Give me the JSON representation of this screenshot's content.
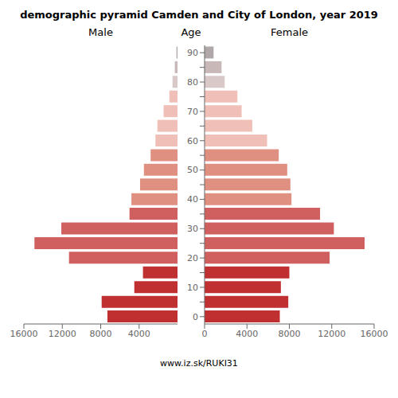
{
  "chart_data": {
    "type": "bar",
    "orientation": "horizontal",
    "title": "demographic pyramid Camden and City of London, year 2019",
    "ylabel": "Age",
    "annotations": [
      "www.iz.sk/RUKI31"
    ],
    "categories": [
      "0",
      null,
      "10",
      null,
      "20",
      null,
      "30",
      null,
      "40",
      null,
      "50",
      null,
      "60",
      null,
      "70",
      null,
      "80",
      null,
      "90"
    ],
    "series": [
      {
        "name": "Male",
        "values": [
          7300,
          7900,
          4500,
          3600,
          11300,
          14900,
          12100,
          5000,
          4800,
          3900,
          3500,
          2800,
          2300,
          2100,
          1450,
          850,
          520,
          280,
          110
        ],
        "colors": [
          "#c03030",
          "#c03030",
          "#c03030",
          "#c03030",
          "#d06060",
          "#d06060",
          "#d06060",
          "#d06060",
          "#e09080",
          "#e09080",
          "#e09080",
          "#e09080",
          "#f0c0b8",
          "#f0c0b8",
          "#f0c0b8",
          "#f0c0b8",
          "#d8c8c8",
          "#c8b8b8",
          "#b0a8a8"
        ]
      },
      {
        "name": "Female",
        "values": [
          7100,
          7900,
          7200,
          8000,
          11800,
          15100,
          12200,
          10900,
          8200,
          8100,
          7800,
          7000,
          5900,
          4500,
          3500,
          3100,
          1900,
          1600,
          850
        ],
        "colors": [
          "#c03030",
          "#c03030",
          "#c03030",
          "#c03030",
          "#d06060",
          "#d06060",
          "#d06060",
          "#d06060",
          "#e09080",
          "#e09080",
          "#e09080",
          "#e09080",
          "#f0c0b8",
          "#f0c0b8",
          "#f0c0b8",
          "#f0c0b8",
          "#d8c8c8",
          "#c8b8b8",
          "#b0a8a8"
        ]
      }
    ],
    "xlim": [
      0,
      16000
    ],
    "xticks": [
      0,
      4000,
      8000,
      12000,
      16000
    ],
    "grid": false
  }
}
